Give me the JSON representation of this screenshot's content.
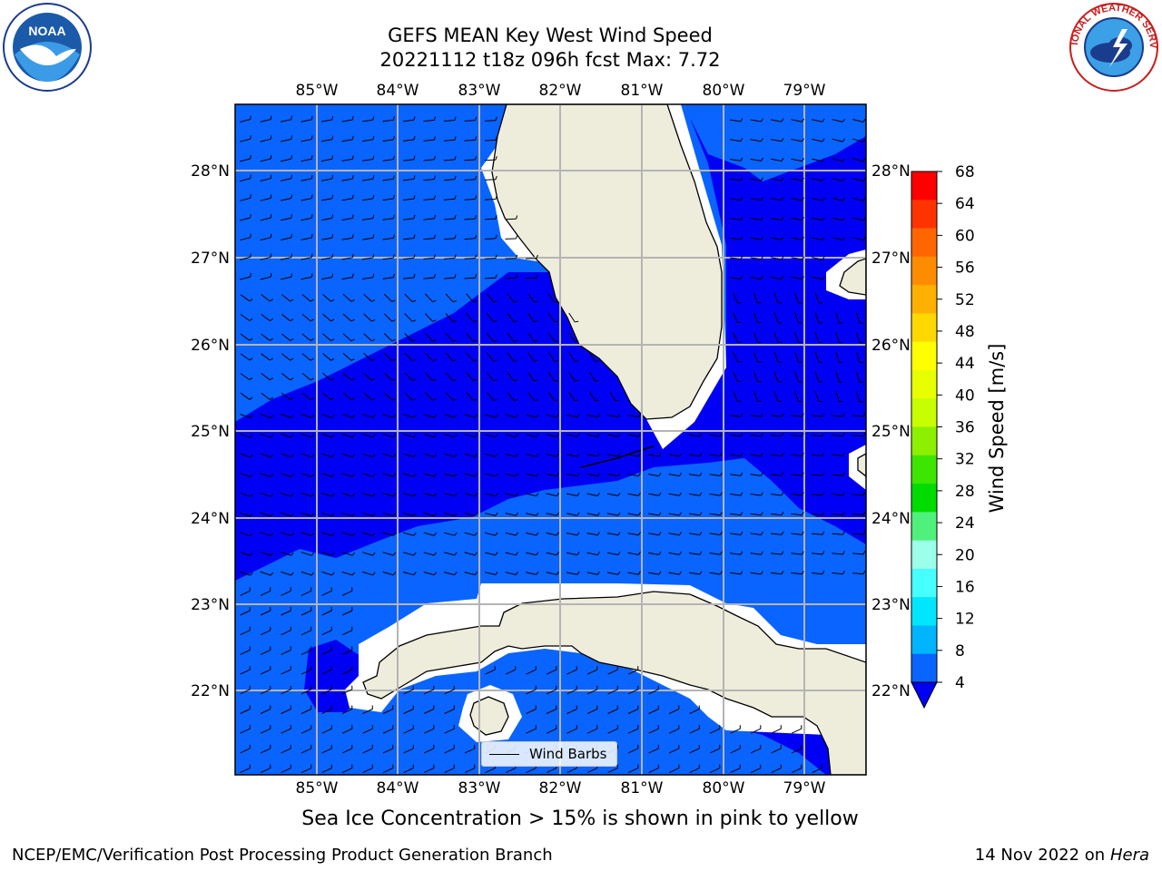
{
  "header": {
    "title_line1": "GEFS MEAN Key West Wind Speed",
    "title_line2": "20221112 t18z 096h fcst   Max: 7.72"
  },
  "logos": {
    "left": {
      "icon": "noaa-logo-icon",
      "text": "NOAA"
    },
    "right": {
      "icon": "nws-logo-icon",
      "text": "NATIONAL WEATHER SERVICE"
    }
  },
  "map": {
    "lon_labels": [
      "85°W",
      "84°W",
      "83°W",
      "82°W",
      "81°W",
      "80°W",
      "79°W"
    ],
    "lat_labels": [
      "28°N",
      "27°N",
      "26°N",
      "25°N",
      "24°N",
      "23°N",
      "22°N"
    ],
    "colors": {
      "ocean_4_8": "#0a64ff",
      "ocean_below_4": "#0000f5",
      "land": "#eeeddc",
      "coast_mask": "#ffffff",
      "grid": "#b4b4b4"
    }
  },
  "legend": {
    "label": "Wind Barbs"
  },
  "colorbar": {
    "label": "Wind Speed [m/s]",
    "ticks": [
      "68",
      "64",
      "60",
      "56",
      "52",
      "48",
      "44",
      "40",
      "36",
      "32",
      "28",
      "24",
      "20",
      "16",
      "12",
      "8",
      "4"
    ],
    "colors": [
      "#ff0000",
      "#ff3300",
      "#ff6600",
      "#ff8c00",
      "#ffb000",
      "#ffd800",
      "#ffff00",
      "#e8ff00",
      "#c8ff00",
      "#8cf000",
      "#3ce600",
      "#00dc00",
      "#50f07d",
      "#9bffe9",
      "#46ffff",
      "#00e6ff",
      "#00b4ff",
      "#0a64ff"
    ],
    "extend_color": "#0000f5"
  },
  "notes": {
    "sea_ice": "Sea Ice Concentration > 15% is shown in pink to yellow"
  },
  "footer": {
    "left": "NCEP/EMC/Verification Post Processing Product Generation Branch",
    "date": "14 Nov 2022 on",
    "host": "Hera"
  }
}
